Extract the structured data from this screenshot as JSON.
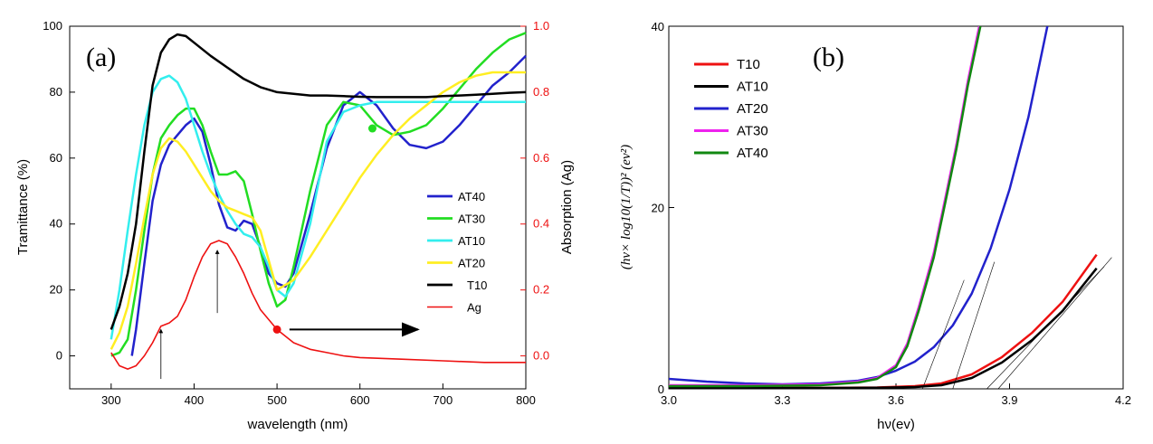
{
  "chart_data": [
    {
      "type": "line",
      "panel_label": "(a)",
      "xlabel": "wavelength (nm)",
      "ylabel": "Tramittance (%)",
      "y2label": "Absorption (Ag)",
      "xlim": [
        250,
        800
      ],
      "ylim": [
        -10,
        100
      ],
      "y2lim": [
        -0.1,
        1.0
      ],
      "xticks": [
        "300",
        "400",
        "500",
        "600",
        "700",
        "800"
      ],
      "yticks": [
        "0",
        "20",
        "40",
        "60",
        "80",
        "100"
      ],
      "y2ticks": [
        "0.0",
        "0.2",
        "0.4",
        "0.6",
        "0.8",
        "1.0"
      ],
      "legend": [
        "AT40",
        "AT30",
        "AT10",
        "AT20",
        "T10",
        "Ag"
      ],
      "series": [
        {
          "name": "AT40",
          "color": "#2222cc",
          "x": [
            325,
            330,
            340,
            350,
            360,
            370,
            380,
            390,
            400,
            410,
            420,
            430,
            440,
            450,
            460,
            470,
            480,
            490,
            500,
            510,
            520,
            540,
            560,
            580,
            600,
            620,
            640,
            660,
            680,
            700,
            720,
            740,
            760,
            780,
            800
          ],
          "y": [
            0,
            8,
            28,
            47,
            58,
            64,
            67,
            70,
            72,
            68,
            58,
            46,
            39,
            38,
            41,
            40,
            33,
            25,
            22,
            21,
            25,
            43,
            63,
            76,
            80,
            76,
            69,
            64,
            63,
            65,
            70,
            76,
            82,
            86,
            91
          ]
        },
        {
          "name": "AT30",
          "color": "#22dd22",
          "x": [
            300,
            310,
            320,
            330,
            340,
            350,
            360,
            370,
            380,
            390,
            400,
            410,
            420,
            430,
            440,
            450,
            460,
            470,
            480,
            490,
            500,
            510,
            520,
            540,
            560,
            580,
            600,
            620,
            640,
            660,
            680,
            700,
            720,
            740,
            760,
            780,
            800
          ],
          "y": [
            0,
            1,
            5,
            20,
            38,
            55,
            66,
            70,
            73,
            75,
            75,
            70,
            62,
            55,
            55,
            56,
            53,
            43,
            32,
            22,
            15,
            17,
            27,
            50,
            70,
            77,
            76,
            70,
            67,
            68,
            70,
            75,
            81,
            87,
            92,
            96,
            98
          ]
        },
        {
          "name": "AT10",
          "color": "#33eeee",
          "x": [
            300,
            310,
            320,
            330,
            340,
            350,
            360,
            370,
            380,
            390,
            400,
            410,
            420,
            430,
            440,
            450,
            460,
            470,
            480,
            490,
            500,
            510,
            520,
            540,
            560,
            580,
            600,
            620,
            640,
            660,
            680,
            700,
            720,
            740,
            760,
            780,
            800
          ],
          "y": [
            5,
            20,
            38,
            55,
            70,
            80,
            84,
            85,
            83,
            78,
            70,
            62,
            55,
            49,
            44,
            40,
            37,
            36,
            33,
            27,
            20,
            18,
            22,
            40,
            65,
            74,
            76,
            77,
            77,
            77,
            77,
            77,
            77,
            77,
            77,
            77,
            77
          ]
        },
        {
          "name": "AT20",
          "color": "#ffee22",
          "x": [
            300,
            310,
            320,
            330,
            340,
            350,
            360,
            370,
            380,
            390,
            400,
            410,
            420,
            430,
            440,
            450,
            460,
            470,
            480,
            490,
            500,
            520,
            540,
            560,
            580,
            600,
            620,
            640,
            660,
            680,
            700,
            720,
            740,
            760,
            780,
            800
          ],
          "y": [
            2,
            7,
            15,
            28,
            42,
            55,
            63,
            66,
            65,
            62,
            58,
            54,
            50,
            47,
            45,
            44,
            43,
            42,
            38,
            29,
            20,
            23,
            30,
            38,
            46,
            54,
            61,
            67,
            72,
            76,
            80,
            83,
            85,
            86,
            86,
            86
          ]
        },
        {
          "name": "T10",
          "color": "#000000",
          "x": [
            300,
            310,
            320,
            330,
            340,
            350,
            360,
            370,
            380,
            390,
            400,
            420,
            440,
            460,
            480,
            500,
            520,
            540,
            560,
            580,
            600,
            620,
            640,
            660,
            680,
            700,
            720,
            740,
            760,
            780,
            800
          ],
          "y": [
            8,
            15,
            25,
            40,
            62,
            82,
            92,
            96,
            97.5,
            97,
            95,
            91,
            87.5,
            84,
            81.5,
            80,
            79.5,
            79,
            79,
            78.8,
            78.6,
            78.5,
            78.5,
            78.5,
            78.5,
            78.8,
            79,
            79.2,
            79.5,
            79.8,
            80
          ]
        }
      ],
      "absorption_series": {
        "name": "Ag",
        "color": "#ee1111",
        "axis": "right",
        "x": [
          300,
          310,
          320,
          330,
          340,
          350,
          360,
          370,
          380,
          390,
          400,
          410,
          420,
          430,
          440,
          450,
          460,
          470,
          480,
          490,
          500,
          520,
          540,
          560,
          580,
          600,
          650,
          700,
          750,
          800
        ],
        "y": [
          0.01,
          -0.03,
          -0.04,
          -0.03,
          0.0,
          0.04,
          0.09,
          0.1,
          0.12,
          0.17,
          0.24,
          0.3,
          0.34,
          0.35,
          0.34,
          0.3,
          0.25,
          0.19,
          0.14,
          0.11,
          0.08,
          0.04,
          0.02,
          0.01,
          0.0,
          -0.005,
          -0.01,
          -0.015,
          -0.02,
          -0.02
        ]
      },
      "annotations": [
        {
          "kind": "arrow-up",
          "x": 360,
          "from": -0.07,
          "to": 0.08,
          "axis": "right"
        },
        {
          "kind": "arrow-up",
          "x": 428,
          "from": 0.13,
          "to": 0.32,
          "axis": "right"
        },
        {
          "kind": "dot",
          "x": 500,
          "y": 0.08,
          "axis": "right",
          "color": "#ee1111"
        },
        {
          "kind": "arrow-right",
          "x_from": 515,
          "x_to": 670,
          "y": 0.08,
          "axis": "right"
        },
        {
          "kind": "dot",
          "x": 615,
          "y": 69,
          "axis": "left",
          "color": "#22dd22"
        }
      ]
    },
    {
      "type": "line",
      "panel_label": "(b)",
      "xlabel": "hν(ev)",
      "ylabel": "(hν× log10(1/T))² (ev²)",
      "xlim": [
        3.0,
        4.2
      ],
      "ylim": [
        0,
        40
      ],
      "xticks": [
        "3.0",
        "3.3",
        "3.6",
        "3.9",
        "4.2"
      ],
      "yticks": [
        "0",
        "20",
        "40"
      ],
      "legend": [
        "T10",
        "AT10",
        "AT20",
        "AT30",
        "AT40"
      ],
      "series": [
        {
          "name": "T10",
          "color": "#ee1111",
          "x": [
            3.0,
            3.2,
            3.4,
            3.55,
            3.65,
            3.72,
            3.8,
            3.88,
            3.96,
            4.04,
            4.13
          ],
          "y": [
            0.1,
            0.1,
            0.1,
            0.15,
            0.3,
            0.6,
            1.6,
            3.5,
            6.2,
            9.6,
            14.8
          ]
        },
        {
          "name": "AT10",
          "color": "#000000",
          "x": [
            3.0,
            3.2,
            3.4,
            3.55,
            3.65,
            3.72,
            3.8,
            3.88,
            3.96,
            4.04,
            4.13
          ],
          "y": [
            0.1,
            0.1,
            0.1,
            0.12,
            0.2,
            0.4,
            1.2,
            2.9,
            5.4,
            8.6,
            13.3
          ]
        },
        {
          "name": "AT20",
          "color": "#2222cc",
          "x": [
            3.0,
            3.1,
            3.2,
            3.3,
            3.4,
            3.5,
            3.55,
            3.6,
            3.65,
            3.7,
            3.75,
            3.8,
            3.85,
            3.9,
            3.95,
            4.0
          ],
          "y": [
            1.1,
            0.8,
            0.6,
            0.5,
            0.6,
            0.9,
            1.3,
            2.0,
            3.0,
            4.6,
            7.0,
            10.5,
            15.5,
            22,
            30,
            40
          ]
        },
        {
          "name": "AT30",
          "color": "#ee22ee",
          "x": [
            3.0,
            3.2,
            3.4,
            3.5,
            3.55,
            3.6,
            3.63,
            3.66,
            3.7,
            3.73,
            3.76,
            3.79,
            3.82
          ],
          "y": [
            0.4,
            0.4,
            0.5,
            0.8,
            1.2,
            2.6,
            5,
            9,
            15,
            21,
            27,
            34,
            40
          ]
        },
        {
          "name": "AT40",
          "color": "#118811",
          "x": [
            3.0,
            3.2,
            3.4,
            3.5,
            3.55,
            3.6,
            3.63,
            3.66,
            3.7,
            3.73,
            3.76,
            3.79,
            3.823
          ],
          "y": [
            0.3,
            0.3,
            0.4,
            0.7,
            1.1,
            2.4,
            4.7,
            8.6,
            14.5,
            20.5,
            26.5,
            33.5,
            40
          ]
        }
      ],
      "tangents": [
        {
          "x": [
            3.67,
            3.78
          ],
          "y": [
            0,
            12
          ]
        },
        {
          "x": [
            3.75,
            3.86
          ],
          "y": [
            0,
            14
          ]
        },
        {
          "x": [
            3.84,
            4.15
          ],
          "y": [
            0,
            13.5
          ]
        },
        {
          "x": [
            3.87,
            4.17
          ],
          "y": [
            0,
            14.5
          ]
        }
      ]
    }
  ]
}
